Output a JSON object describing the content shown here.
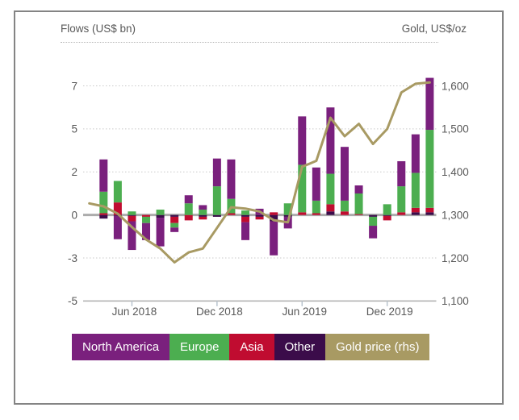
{
  "header": {
    "left_title": "Flows (US$ bn)",
    "right_title": "Gold, US$/oz"
  },
  "legend": {
    "items": [
      {
        "label": "North America",
        "color": "#7A207D"
      },
      {
        "label": "Europe",
        "color": "#4CAE50"
      },
      {
        "label": "Asia",
        "color": "#C00C30"
      },
      {
        "label": "Other",
        "color": "#3B0C4A"
      },
      {
        "label": "Gold price (rhs)",
        "color": "#A89A63"
      }
    ]
  },
  "colors": {
    "north_america": "#7A207D",
    "europe": "#4CAE50",
    "asia": "#C00C30",
    "other": "#3B0C4A",
    "gold_line": "#A89A63",
    "gridline": "#c9c9c9",
    "zero_line": "#acacac",
    "axis_line": "#adadad",
    "tick_mark": "#b9c4ce",
    "axis_text": "#595959",
    "card_border": "#848484"
  },
  "chart_data": {
    "type": "combo: stacked monthly bars (ETF flows, left axis) + line (gold price, right axis)",
    "title": "",
    "xlabel": "",
    "ylabel_left": "Flows (US$ bn)",
    "ylabel_right": "Gold, US$/oz",
    "categories": [
      "Apr 2018",
      "May 2018",
      "Jun 2018",
      "Jul 2018",
      "Aug 2018",
      "Sep 2018",
      "Oct 2018",
      "Nov 2018",
      "Dec 2018",
      "Jan 2019",
      "Feb 2019",
      "Mar 2019",
      "Apr 2019",
      "May 2019",
      "Jun 2019",
      "Jul 2019",
      "Aug 2019",
      "Sep 2019",
      "Oct 2019",
      "Nov 2019",
      "Dec 2019",
      "Jan 2020",
      "Feb 2020",
      "Mar 2020"
    ],
    "series": [
      {
        "name": "North America",
        "color": "#7A207D",
        "values": [
          1.8,
          -1.3,
          -1.6,
          -0.95,
          -1.6,
          -0.25,
          0.45,
          0.25,
          1.55,
          2.2,
          -1.0,
          0.35,
          -1.9,
          -0.65,
          2.7,
          1.85,
          3.7,
          3.0,
          0.45,
          -0.7,
          0.0,
          1.4,
          2.15,
          2.9
        ]
      },
      {
        "name": "Europe",
        "color": "#4CAE50",
        "values": [
          1.2,
          1.2,
          0.2,
          -0.35,
          0.3,
          -0.25,
          0.65,
          0.3,
          1.6,
          0.8,
          0.25,
          0.0,
          0.0,
          0.65,
          2.65,
          0.7,
          1.7,
          0.6,
          1.15,
          -0.5,
          0.6,
          1.45,
          1.95,
          4.35
        ]
      },
      {
        "name": "Asia",
        "color": "#C00C30",
        "values": [
          0.1,
          0.7,
          -0.3,
          -0.1,
          0.0,
          -0.35,
          -0.3,
          -0.15,
          0.0,
          0.1,
          -0.3,
          -0.15,
          0.15,
          0.0,
          0.15,
          0.1,
          0.4,
          0.2,
          0.05,
          0.0,
          -0.25,
          0.15,
          0.25,
          0.25
        ]
      },
      {
        "name": "Other",
        "color": "#3B0C4A",
        "values": [
          -0.2,
          -0.05,
          -0.05,
          0.0,
          -0.15,
          -0.1,
          0.0,
          -0.1,
          -0.1,
          0.0,
          -0.1,
          -0.1,
          -0.35,
          -0.1,
          0.0,
          0.0,
          0.2,
          0.0,
          0.0,
          -0.1,
          -0.05,
          0.0,
          0.15,
          0.15
        ]
      }
    ],
    "line_series": {
      "name": "Gold price (rhs)",
      "color": "#A89A63",
      "months": [
        "Mar 2018",
        "Apr 2018",
        "May 2018",
        "Jun 2018",
        "Jul 2018",
        "Aug 2018",
        "Sep 2018",
        "Oct 2018",
        "Nov 2018",
        "Dec 2018",
        "Jan 2019",
        "Feb 2019",
        "Mar 2019",
        "Apr 2019",
        "May 2019",
        "Jun 2019",
        "Jul 2019",
        "Aug 2019",
        "Sep 2019",
        "Oct 2019",
        "Nov 2019",
        "Dec 2019",
        "Jan 2020",
        "Feb 2020",
        "Mar 2020"
      ],
      "values": [
        1327,
        1320,
        1303,
        1272,
        1243,
        1222,
        1190,
        1213,
        1222,
        1270,
        1318,
        1315,
        1308,
        1288,
        1283,
        1412,
        1426,
        1526,
        1483,
        1512,
        1465,
        1500,
        1585,
        1605,
        1608
      ]
    },
    "left_axis": {
      "title": "Flows (US$ bn)",
      "tick_labels": [
        "7",
        "5",
        "2",
        "0",
        "-3",
        "-5"
      ],
      "units_per_gridline": 2.4
    },
    "right_axis": {
      "title": "Gold, US$/oz",
      "tick_labels": [
        "1,600",
        "1,500",
        "1,400",
        "1,300",
        "1,200",
        "1,100"
      ],
      "range": [
        1100,
        1600
      ]
    },
    "x_axis": {
      "tick_labels": [
        "Jun 2018",
        "Dec 2018",
        "Jun 2019",
        "Dec 2019"
      ],
      "tick_month_indices": [
        2,
        8,
        14,
        20
      ]
    },
    "grid": "horizontal dotted, zero line solid thick",
    "legend_position": "bottom"
  }
}
